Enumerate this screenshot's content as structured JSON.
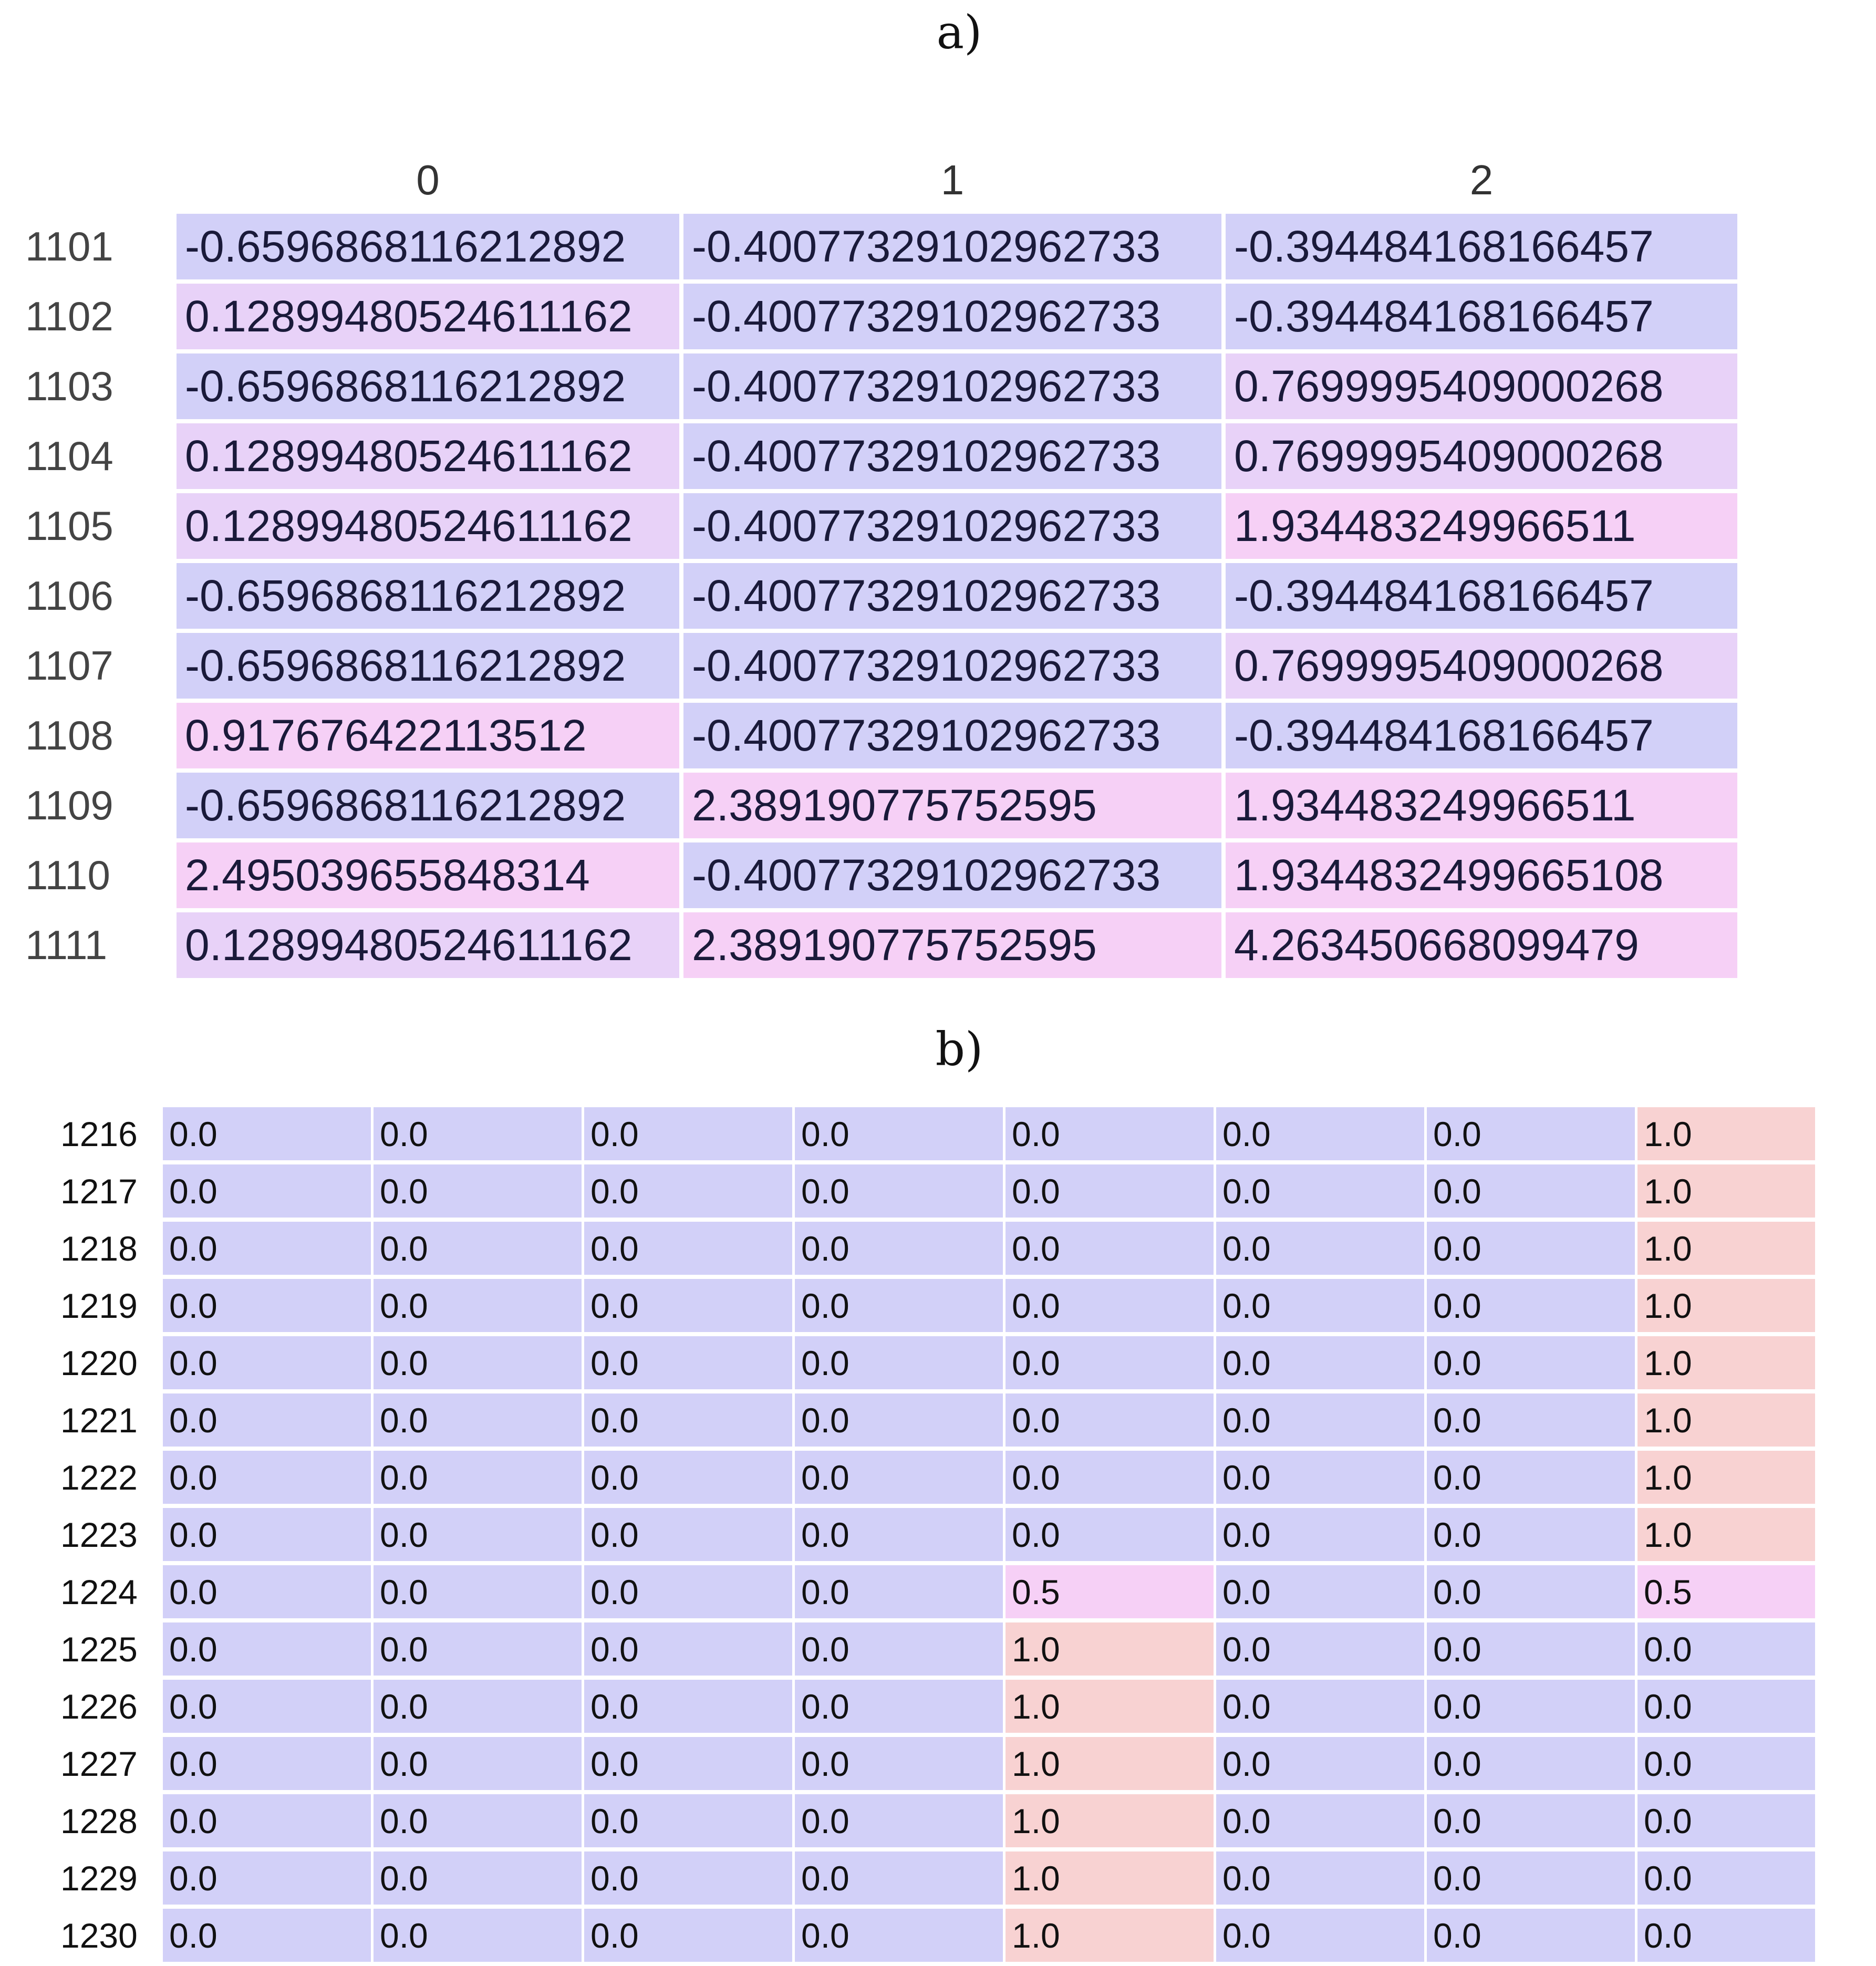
{
  "captions": {
    "a": "a)",
    "b": "b)"
  },
  "colors": {
    "low": "#d2d0f8",
    "mid": "#f6d0f6",
    "high": "#f8d2d2",
    "mid_a": "#e8d2f8"
  },
  "table_a": {
    "columns": [
      "0",
      "1",
      "2"
    ],
    "rows": [
      {
        "label": "1101",
        "values": [
          "-0.6596868116212892",
          "-0.40077329102962733",
          "-0.394484168166457"
        ]
      },
      {
        "label": "1102",
        "values": [
          "0.12899480524611162",
          "-0.40077329102962733",
          "-0.394484168166457"
        ]
      },
      {
        "label": "1103",
        "values": [
          "-0.6596868116212892",
          "-0.40077329102962733",
          "0.7699995409000268"
        ]
      },
      {
        "label": "1104",
        "values": [
          "0.12899480524611162",
          "-0.40077329102962733",
          "0.7699995409000268"
        ]
      },
      {
        "label": "1105",
        "values": [
          "0.12899480524611162",
          "-0.40077329102962733",
          "1.934483249966511"
        ]
      },
      {
        "label": "1106",
        "values": [
          "-0.6596868116212892",
          "-0.40077329102962733",
          "-0.394484168166457"
        ]
      },
      {
        "label": "1107",
        "values": [
          "-0.6596868116212892",
          "-0.40077329102962733",
          "0.7699995409000268"
        ]
      },
      {
        "label": "1108",
        "values": [
          "0.917676422113512",
          "-0.40077329102962733",
          "-0.394484168166457"
        ]
      },
      {
        "label": "1109",
        "values": [
          "-0.6596868116212892",
          "2.389190775752595",
          "1.934483249966511"
        ]
      },
      {
        "label": "1110",
        "values": [
          "2.495039655848314",
          "-0.40077329102962733",
          "1.9344832499665108"
        ]
      },
      {
        "label": "1111",
        "values": [
          "0.12899480524611162",
          "2.389190775752595",
          "4.263450668099479"
        ]
      }
    ],
    "levels": [
      [
        "low",
        "low",
        "low"
      ],
      [
        "mid_a",
        "low",
        "low"
      ],
      [
        "low",
        "low",
        "mid_a"
      ],
      [
        "mid_a",
        "low",
        "mid_a"
      ],
      [
        "mid_a",
        "low",
        "mid"
      ],
      [
        "low",
        "low",
        "low"
      ],
      [
        "low",
        "low",
        "mid_a"
      ],
      [
        "mid",
        "low",
        "low"
      ],
      [
        "low",
        "mid",
        "mid"
      ],
      [
        "mid",
        "low",
        "mid"
      ],
      [
        "mid_a",
        "mid",
        "mid"
      ]
    ]
  },
  "table_b": {
    "rows": [
      {
        "label": "1216",
        "values": [
          "0.0",
          "0.0",
          "0.0",
          "0.0",
          "0.0",
          "0.0",
          "0.0",
          "1.0"
        ]
      },
      {
        "label": "1217",
        "values": [
          "0.0",
          "0.0",
          "0.0",
          "0.0",
          "0.0",
          "0.0",
          "0.0",
          "1.0"
        ]
      },
      {
        "label": "1218",
        "values": [
          "0.0",
          "0.0",
          "0.0",
          "0.0",
          "0.0",
          "0.0",
          "0.0",
          "1.0"
        ]
      },
      {
        "label": "1219",
        "values": [
          "0.0",
          "0.0",
          "0.0",
          "0.0",
          "0.0",
          "0.0",
          "0.0",
          "1.0"
        ]
      },
      {
        "label": "1220",
        "values": [
          "0.0",
          "0.0",
          "0.0",
          "0.0",
          "0.0",
          "0.0",
          "0.0",
          "1.0"
        ]
      },
      {
        "label": "1221",
        "values": [
          "0.0",
          "0.0",
          "0.0",
          "0.0",
          "0.0",
          "0.0",
          "0.0",
          "1.0"
        ]
      },
      {
        "label": "1222",
        "values": [
          "0.0",
          "0.0",
          "0.0",
          "0.0",
          "0.0",
          "0.0",
          "0.0",
          "1.0"
        ]
      },
      {
        "label": "1223",
        "values": [
          "0.0",
          "0.0",
          "0.0",
          "0.0",
          "0.0",
          "0.0",
          "0.0",
          "1.0"
        ]
      },
      {
        "label": "1224",
        "values": [
          "0.0",
          "0.0",
          "0.0",
          "0.0",
          "0.5",
          "0.0",
          "0.0",
          "0.5"
        ]
      },
      {
        "label": "1225",
        "values": [
          "0.0",
          "0.0",
          "0.0",
          "0.0",
          "1.0",
          "0.0",
          "0.0",
          "0.0"
        ]
      },
      {
        "label": "1226",
        "values": [
          "0.0",
          "0.0",
          "0.0",
          "0.0",
          "1.0",
          "0.0",
          "0.0",
          "0.0"
        ]
      },
      {
        "label": "1227",
        "values": [
          "0.0",
          "0.0",
          "0.0",
          "0.0",
          "1.0",
          "0.0",
          "0.0",
          "0.0"
        ]
      },
      {
        "label": "1228",
        "values": [
          "0.0",
          "0.0",
          "0.0",
          "0.0",
          "1.0",
          "0.0",
          "0.0",
          "0.0"
        ]
      },
      {
        "label": "1229",
        "values": [
          "0.0",
          "0.0",
          "0.0",
          "0.0",
          "1.0",
          "0.0",
          "0.0",
          "0.0"
        ]
      },
      {
        "label": "1230",
        "values": [
          "0.0",
          "0.0",
          "0.0",
          "0.0",
          "1.0",
          "0.0",
          "0.0",
          "0.0"
        ]
      }
    ]
  }
}
